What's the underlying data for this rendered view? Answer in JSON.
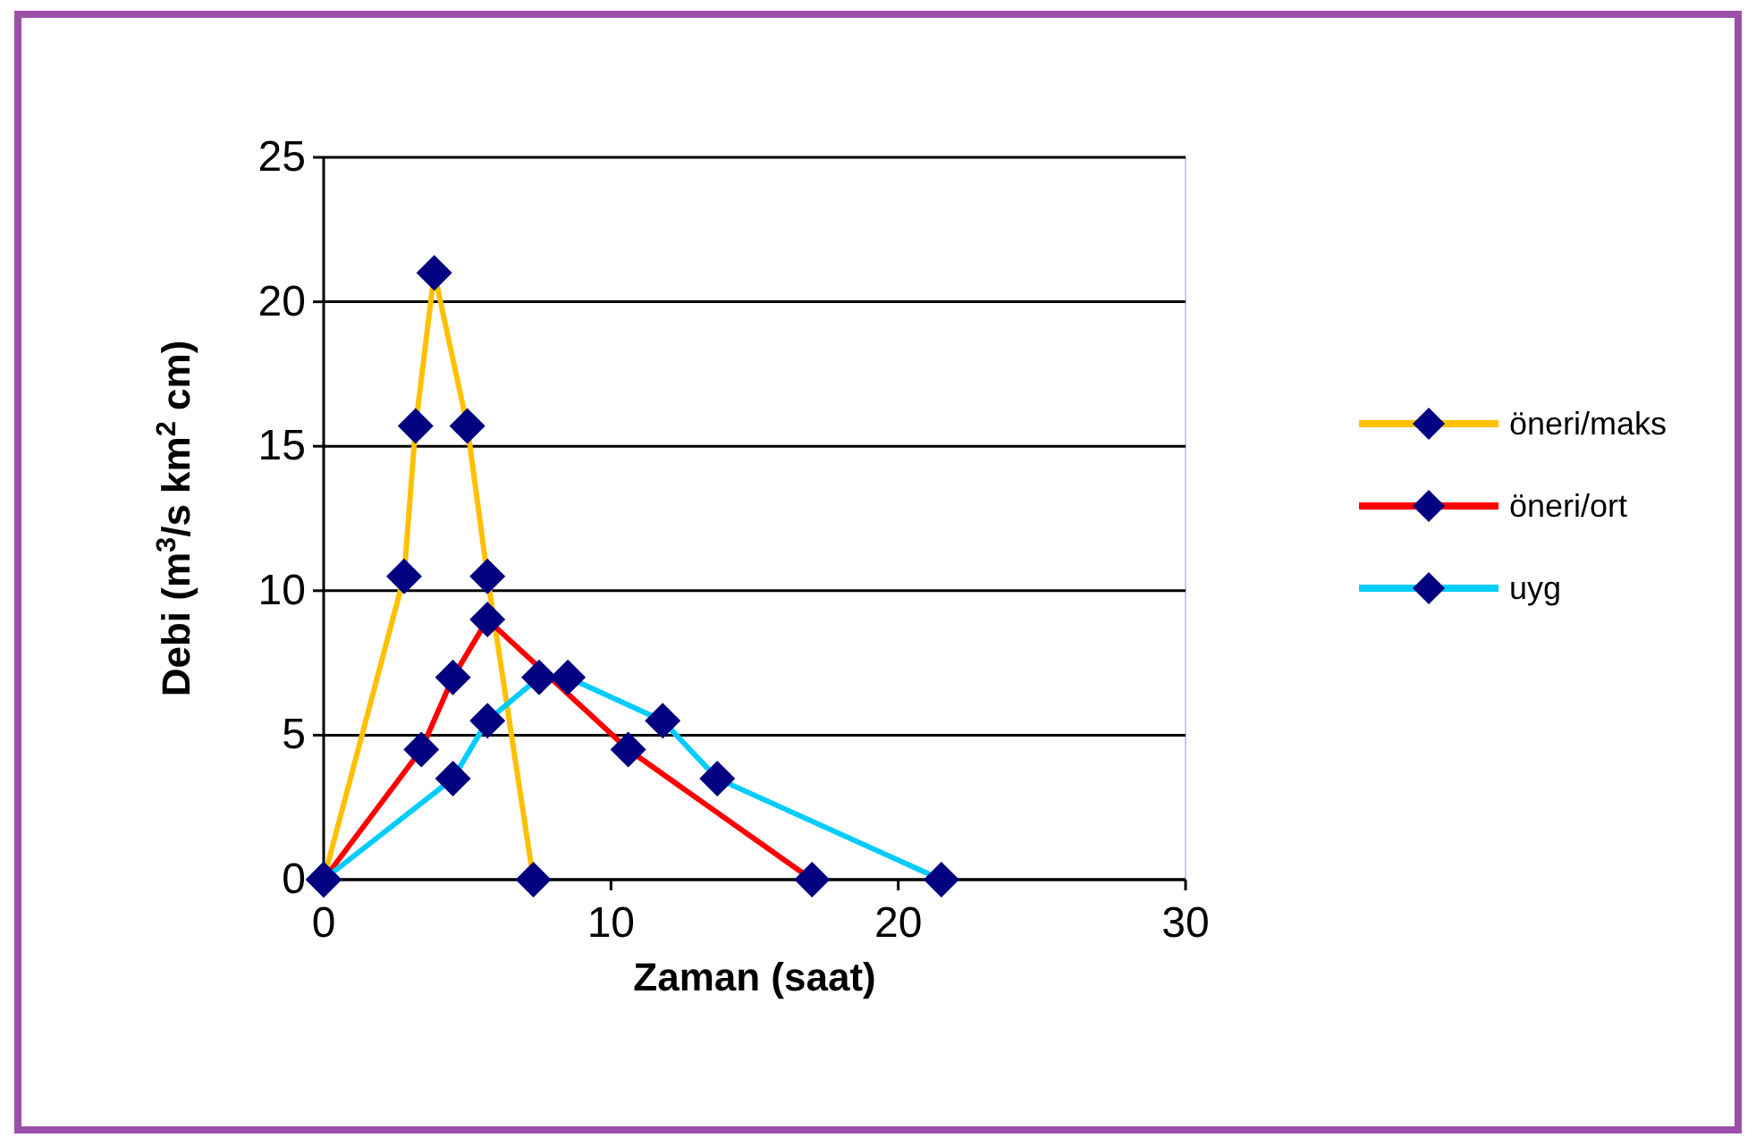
{
  "chart_data": {
    "type": "line",
    "xlabel": "Zaman (saat)",
    "ylabel": "Debi (m$^{3}$/s km$^{2}$ cm)",
    "xlim": [
      0,
      30
    ],
    "ylim": [
      0,
      25
    ],
    "xticks": [
      0,
      10,
      20,
      30
    ],
    "yticks": [
      0,
      5,
      10,
      15,
      20,
      25
    ],
    "grid": "y",
    "legend": "right",
    "marker": "diamond",
    "line_style": "solid",
    "series": [
      {
        "name": "öneri/maks",
        "color": "#ffc000",
        "x": [
          0,
          2.8,
          3.2,
          3.85,
          5.0,
          5.7,
          7.3
        ],
        "values": [
          0,
          10.5,
          15.7,
          21,
          15.7,
          10.5,
          0
        ]
      },
      {
        "name": "öneri/ort",
        "color": "#ff0000",
        "x": [
          0,
          3.4,
          4.5,
          5.7,
          10.6,
          17
        ],
        "values": [
          0,
          4.5,
          7,
          9,
          4.5,
          0
        ]
      },
      {
        "name": "uyg",
        "color": "#00ccff",
        "x": [
          0,
          4.5,
          5.7,
          7.5,
          8.5,
          11.8,
          13.7,
          21.5
        ],
        "values": [
          0,
          3.5,
          5.5,
          7,
          7,
          5.5,
          3.5,
          0
        ]
      }
    ]
  }
}
